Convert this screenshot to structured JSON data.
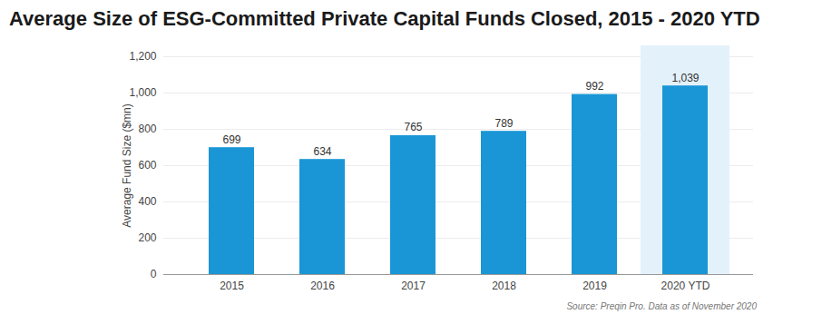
{
  "chart_data": {
    "type": "bar",
    "title": "Average Size of ESG-Committed Private Capital Funds Closed, 2015 - 2020 YTD",
    "ylabel": "Average Fund Size ($mn)",
    "caption": "Source: Preqin Pro. Data as of November 2020",
    "categories": [
      "2015",
      "2016",
      "2017",
      "2018",
      "2019",
      "2020 YTD"
    ],
    "values": [
      699,
      634,
      765,
      789,
      992,
      1039
    ],
    "value_labels": [
      "699",
      "634",
      "765",
      "789",
      "992",
      "1,039"
    ],
    "color": "#1a96d6",
    "ylim": [
      0,
      1200
    ],
    "yticks": [
      0,
      200,
      400,
      600,
      800,
      {
        "value": 1000,
        "label": "1,000"
      },
      {
        "value": 1200,
        "label": "1,200"
      }
    ],
    "grid": true,
    "data_labels": true
  }
}
